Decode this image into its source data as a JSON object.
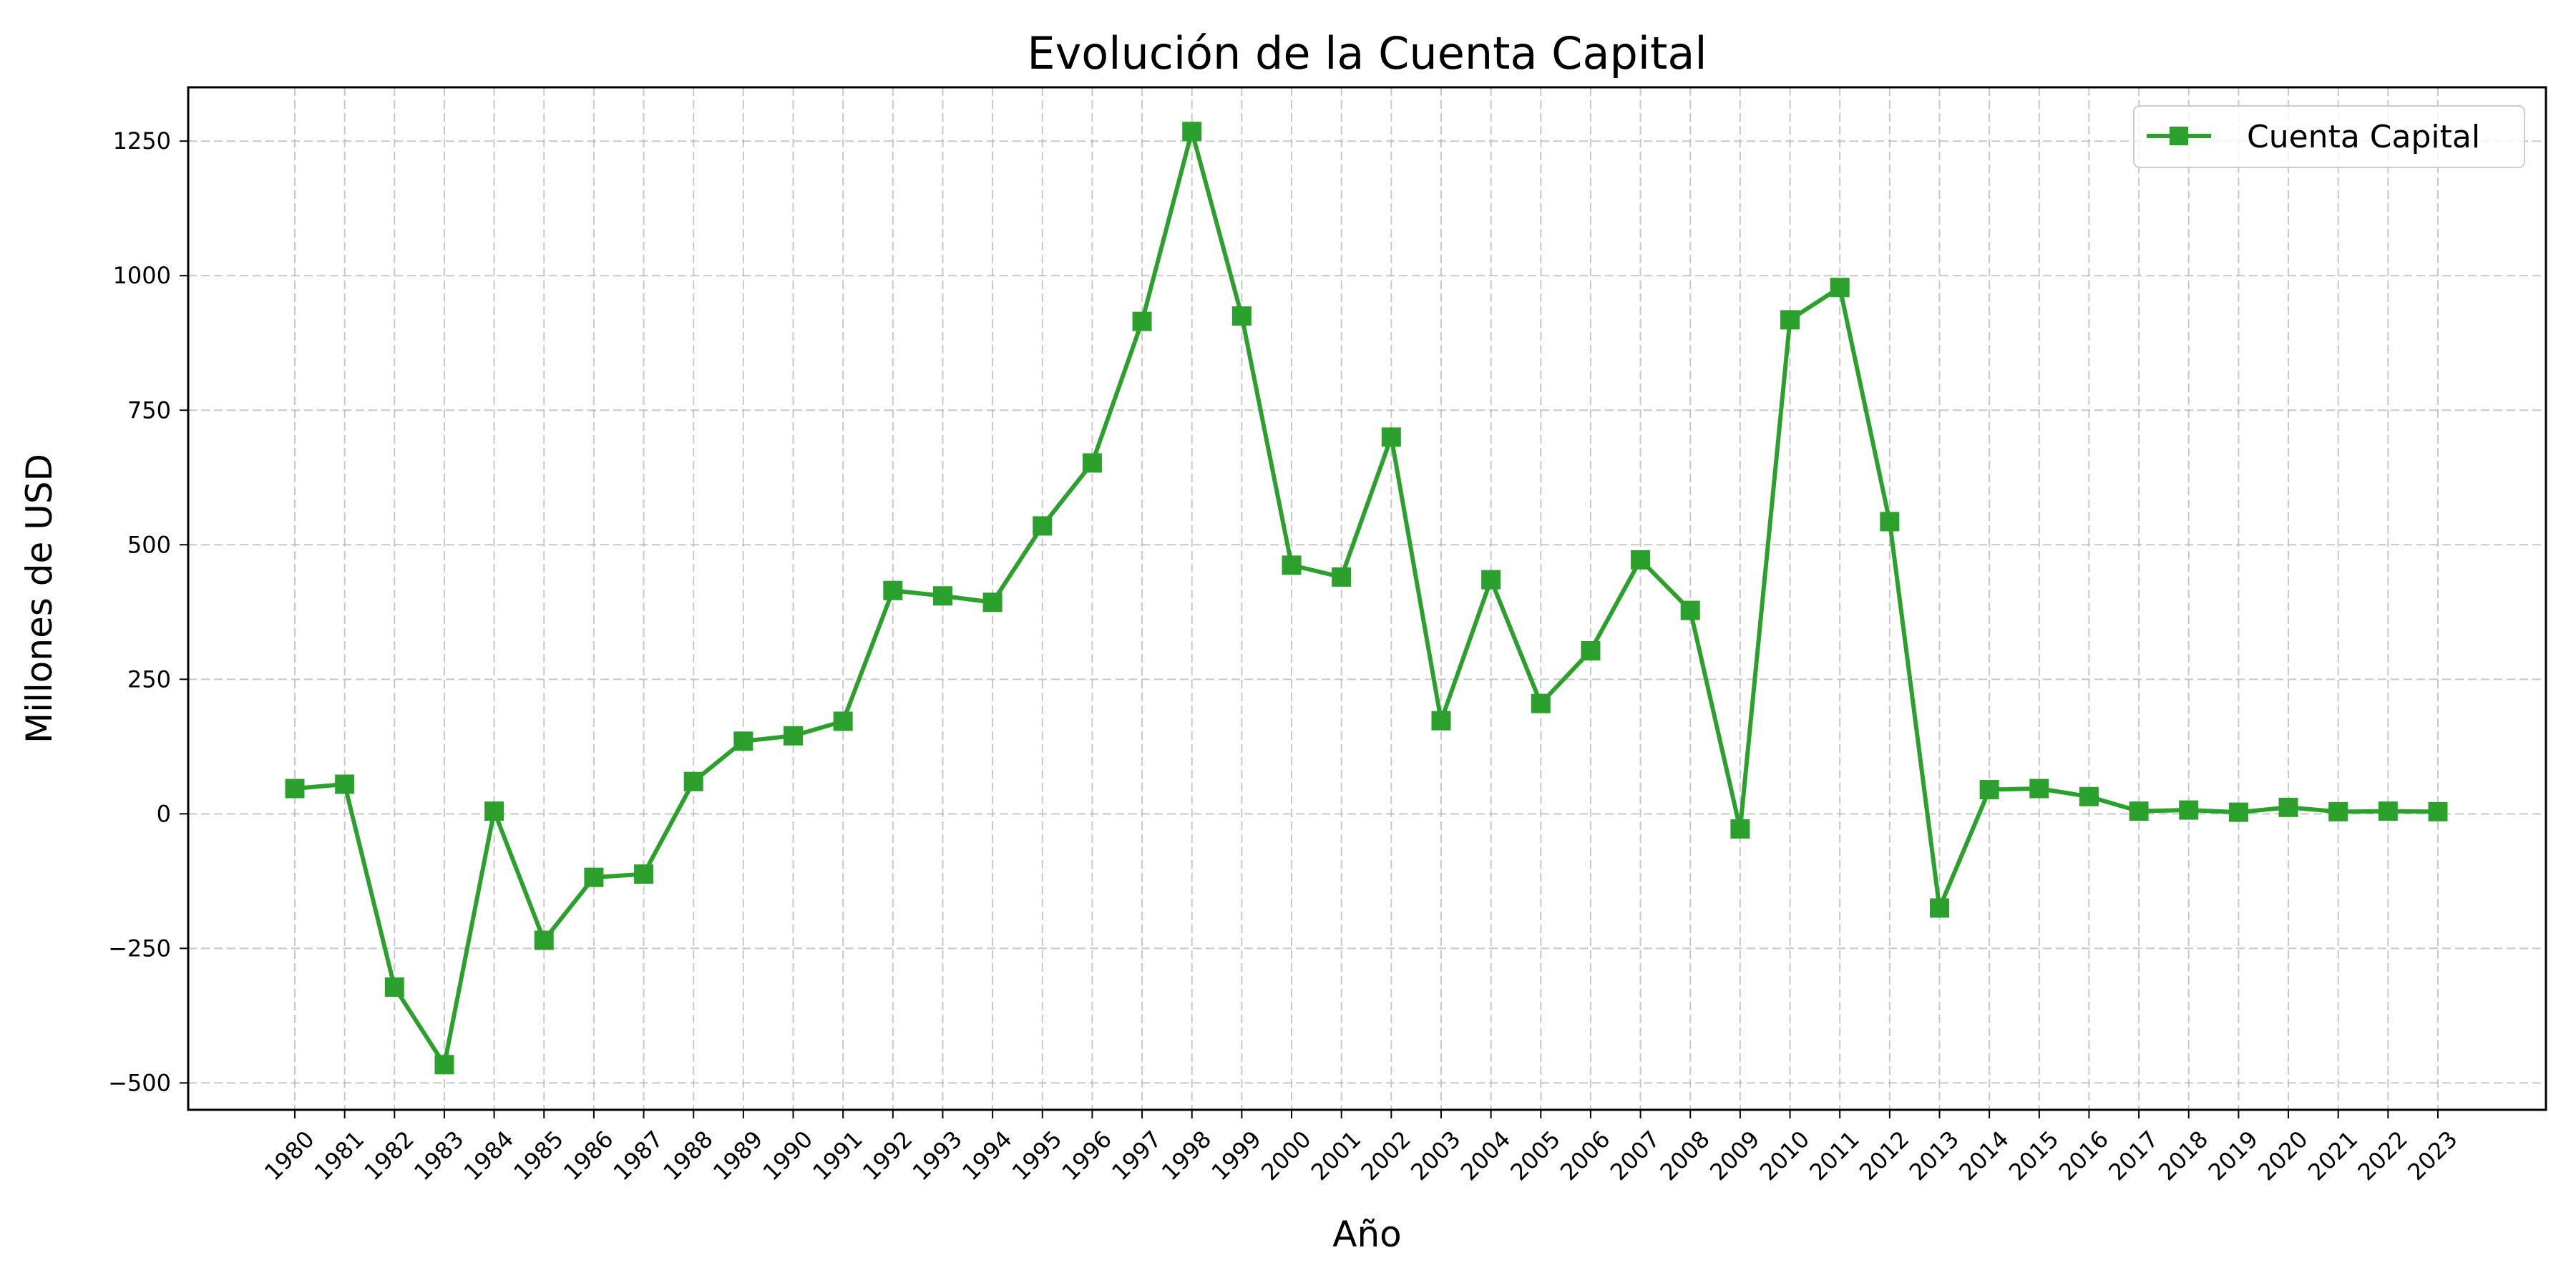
{
  "chart_data": {
    "type": "line",
    "title": "Evolución de la Cuenta Capital",
    "xlabel": "Año",
    "ylabel": "Millones de USD",
    "ylim": [
      -550,
      1350
    ],
    "yticks": [
      -500,
      -250,
      0,
      250,
      500,
      750,
      1000,
      1250
    ],
    "ytick_labels": [
      "−500",
      "−250",
      "0",
      "250",
      "500",
      "750",
      "1000",
      "1250"
    ],
    "grid": true,
    "legend_position": "top-right",
    "x": [
      "1980",
      "1981",
      "1982",
      "1983",
      "1984",
      "1985",
      "1986",
      "1987",
      "1988",
      "1989",
      "1990",
      "1991",
      "1992",
      "1993",
      "1994",
      "1995",
      "1996",
      "1997",
      "1998",
      "1999",
      "2000",
      "2001",
      "2002",
      "2003",
      "2004",
      "2005",
      "2006",
      "2007",
      "2008",
      "2009",
      "2010",
      "2011",
      "2012",
      "2013",
      "2014",
      "2015",
      "2016",
      "2017",
      "2018",
      "2019",
      "2020",
      "2021",
      "2022",
      "2023"
    ],
    "series": [
      {
        "name": "Cuenta Capital",
        "color": "#2ca02c",
        "marker": "square",
        "values": [
          47,
          55,
          -322,
          -466,
          5,
          -235,
          -118,
          -112,
          60,
          135,
          145,
          172,
          415,
          405,
          393,
          535,
          652,
          915,
          1268,
          925,
          462,
          440,
          700,
          173,
          435,
          205,
          303,
          472,
          378,
          -28,
          918,
          978,
          543,
          -175,
          45,
          47,
          32,
          5,
          7,
          3,
          12,
          4,
          5,
          4
        ]
      }
    ]
  }
}
